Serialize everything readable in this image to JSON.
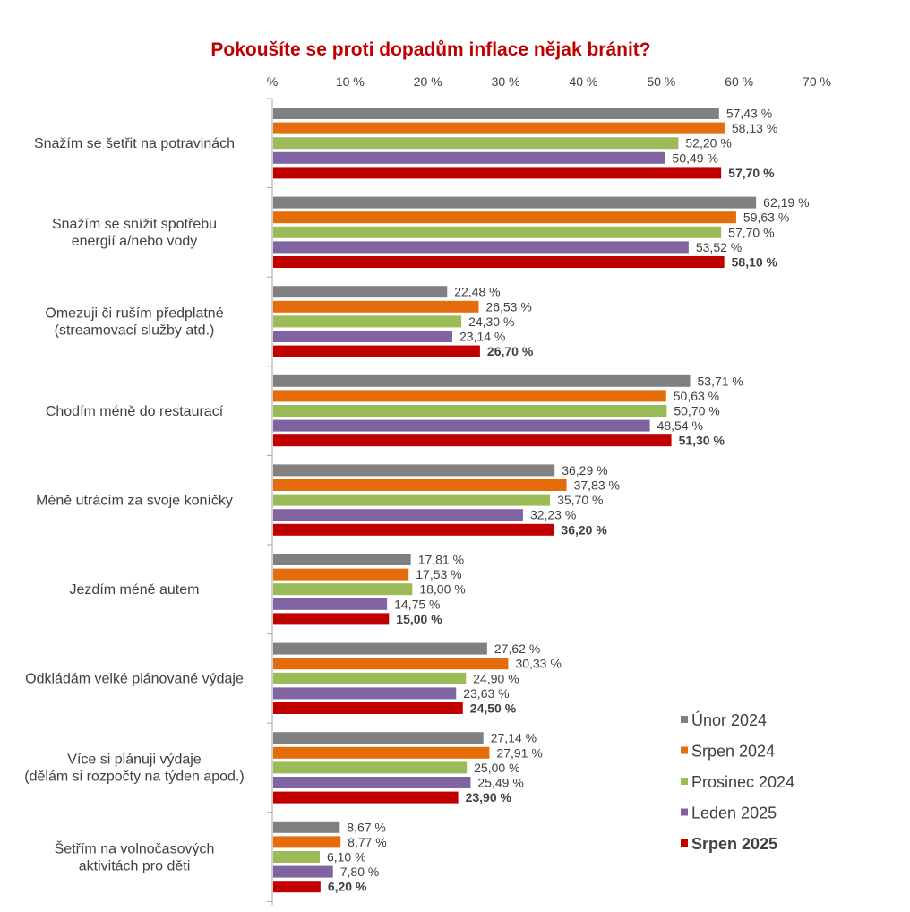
{
  "chart_data": {
    "type": "bar",
    "orientation": "horizontal",
    "title": "Pokoušíte se proti dopadům inflace nějak bránit?",
    "xlim": [
      0,
      70
    ],
    "x_ticks": [
      "%",
      "10 %",
      "20 %",
      "30 %",
      "40 %",
      "50 %",
      "60 %",
      "70 %"
    ],
    "x_tick_values": [
      0,
      10,
      20,
      30,
      40,
      50,
      60,
      70
    ],
    "grid": false,
    "legend_position": "bottom-right",
    "categories": [
      [
        "Snažím se šetřit na potravinách"
      ],
      [
        "Snažím se snížit spotřebu",
        "energií a/nebo vody"
      ],
      [
        "Omezuji či ruším předplatné",
        "(streamovací služby atd.)"
      ],
      [
        "Chodím méně do restaurací"
      ],
      [
        "Méně utrácím za svoje koníčky"
      ],
      [
        "Jezdím méně autem"
      ],
      [
        "Odkládám velké plánované výdaje"
      ],
      [
        "Více si plánuji výdaje",
        "(dělám si rozpočty na týden apod.)"
      ],
      [
        "Šetřím na volnočasových",
        "aktivitách pro děti"
      ]
    ],
    "series": [
      {
        "name": "Únor 2024",
        "color": "#808080",
        "values": [
          57.43,
          62.19,
          22.48,
          53.71,
          36.29,
          17.81,
          27.62,
          27.14,
          8.67
        ],
        "labels": [
          "57,43 %",
          "62,19 %",
          "22,48 %",
          "53,71 %",
          "36,29 %",
          "17,81 %",
          "27,62 %",
          "27,14 %",
          "8,67 %"
        ]
      },
      {
        "name": "Srpen 2024",
        "color": "#E46C0A",
        "values": [
          58.13,
          59.63,
          26.53,
          50.63,
          37.83,
          17.53,
          30.33,
          27.91,
          8.77
        ],
        "labels": [
          "58,13 %",
          "59,63 %",
          "26,53 %",
          "50,63 %",
          "37,83 %",
          "17,53 %",
          "30,33 %",
          "27,91 %",
          "8,77 %"
        ]
      },
      {
        "name": "Prosinec 2024",
        "color": "#9BBB59",
        "values": [
          52.2,
          57.7,
          24.3,
          50.7,
          35.7,
          18.0,
          24.9,
          25.0,
          6.1
        ],
        "labels": [
          "52,20 %",
          "57,70 %",
          "24,30 %",
          "50,70 %",
          "35,70 %",
          "18,00 %",
          "24,90 %",
          "25,00 %",
          "6,10 %"
        ]
      },
      {
        "name": "Leden 2025",
        "color": "#8064A2",
        "values": [
          50.49,
          53.52,
          23.14,
          48.54,
          32.23,
          14.75,
          23.63,
          25.49,
          7.8
        ],
        "labels": [
          "50,49 %",
          "53,52 %",
          "23,14 %",
          "48,54 %",
          "32,23 %",
          "14,75 %",
          "23,63 %",
          "25,49 %",
          "7,80 %"
        ]
      },
      {
        "name": "Srpen 2025",
        "color": "#C00000",
        "bold": true,
        "values": [
          57.7,
          58.1,
          26.7,
          51.3,
          36.2,
          15.0,
          24.5,
          23.9,
          6.2
        ],
        "labels": [
          "57,70 %",
          "58,10 %",
          "26,70 %",
          "51,30 %",
          "36,20 %",
          "15,00 %",
          "24,50 %",
          "23,90 %",
          "6,20 %"
        ]
      }
    ]
  },
  "colors": {
    "title": "#C00000",
    "axis": "#A6A6A6",
    "text": "#404040"
  }
}
